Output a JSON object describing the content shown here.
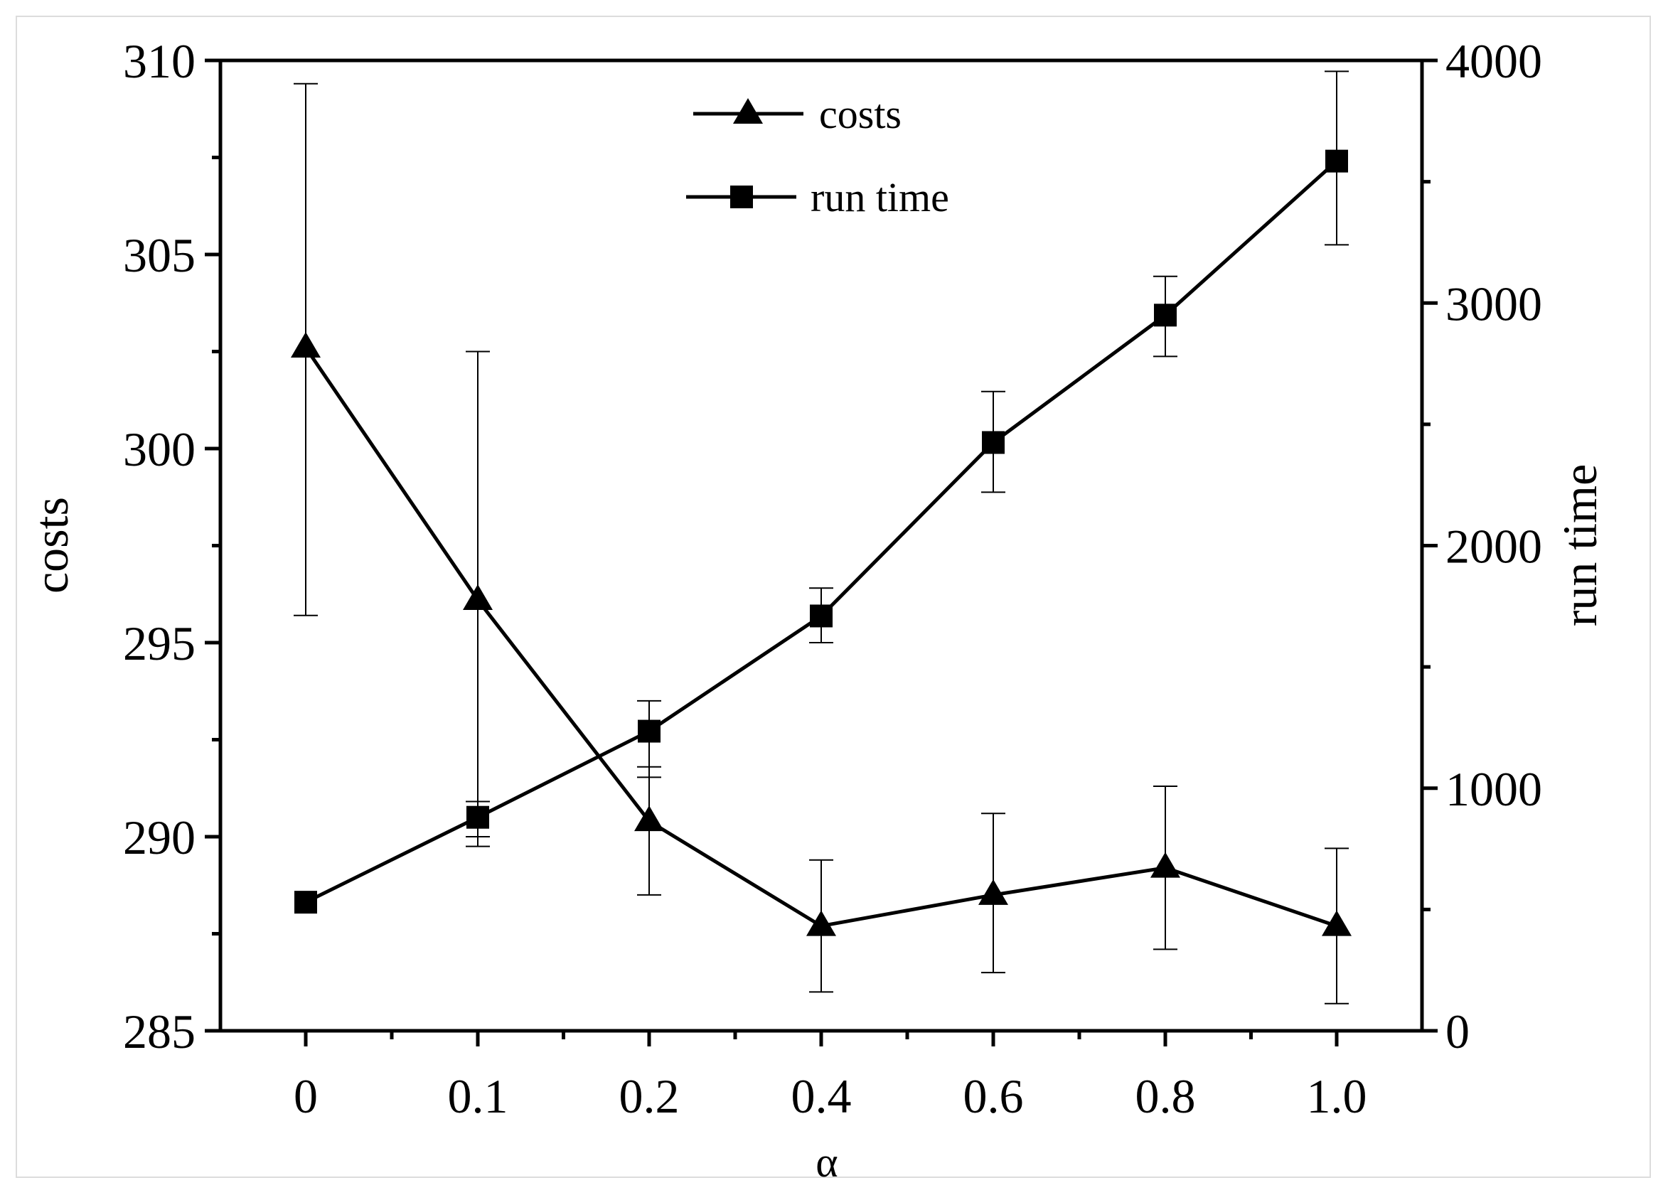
{
  "chart_data": {
    "type": "line",
    "x_categories": [
      "0",
      "0.1",
      "0.2",
      "0.4",
      "0.6",
      "0.8",
      "1.0"
    ],
    "xlabel": "α",
    "left_axis": {
      "label": "costs",
      "ylim": [
        285,
        310
      ],
      "ticks": [
        "285",
        "290",
        "295",
        "300",
        "305",
        "310"
      ],
      "tick_values": [
        285,
        290,
        295,
        300,
        305,
        310
      ]
    },
    "right_axis": {
      "label": "run time",
      "ylim": [
        0,
        4000
      ],
      "ticks": [
        "0",
        "1000",
        "2000",
        "3000",
        "4000"
      ],
      "tick_values": [
        0,
        1000,
        2000,
        3000,
        4000
      ]
    },
    "series": [
      {
        "name": "costs",
        "axis": "left",
        "marker": "triangle",
        "values": [
          302.6,
          296.1,
          290.4,
          287.7,
          288.5,
          289.2,
          287.7
        ],
        "err_low": [
          295.7,
          290.0,
          288.5,
          286.0,
          286.5,
          287.1,
          285.7
        ],
        "err_high": [
          309.4,
          302.5,
          291.8,
          289.4,
          290.6,
          291.3,
          289.7
        ]
      },
      {
        "name": "run time",
        "axis": "right",
        "marker": "square",
        "values": [
          530,
          880,
          1235,
          1710,
          2425,
          2950,
          3585
        ],
        "err_low": [
          530,
          760,
          1045,
          1600,
          2220,
          2780,
          3240
        ],
        "err_high": [
          530,
          945,
          1360,
          1825,
          2635,
          3110,
          3955
        ]
      }
    ],
    "legend": {
      "position": "top-center",
      "entries": [
        "costs",
        "run time"
      ]
    }
  }
}
